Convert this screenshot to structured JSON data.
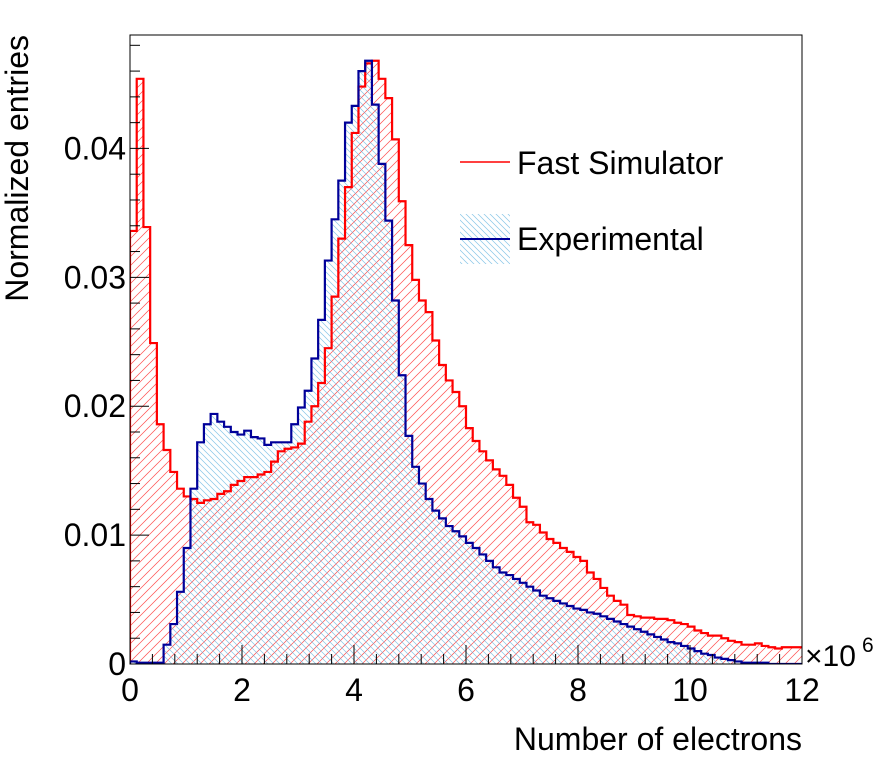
{
  "chart_data": {
    "type": "histogram",
    "xlabel": "Number of electrons",
    "ylabel": "Normalized entries",
    "x_multiplier_label": "×10",
    "x_multiplier_exponent": "6",
    "xlim": [
      0,
      12
    ],
    "ylim": [
      0,
      0.0488
    ],
    "x_ticks": [
      0,
      2,
      4,
      6,
      8,
      10,
      12
    ],
    "x_tick_labels": [
      "0",
      "2",
      "4",
      "6",
      "8",
      "10",
      "12"
    ],
    "y_ticks": [
      0,
      0.01,
      0.02,
      0.03,
      0.04
    ],
    "y_tick_labels": [
      "0",
      "0.01",
      "0.02",
      "0.03",
      "0.04"
    ],
    "bin_edges_start": 0,
    "bin_width": 0.12,
    "legend": [
      {
        "label": "Fast Simulator",
        "color": "#ff0000",
        "style": "line"
      },
      {
        "label": "Experimental",
        "color": "#000099",
        "style": "hatched",
        "fill": "#5fb3df"
      }
    ],
    "series": [
      {
        "name": "Fast Simulator",
        "color": "#ff0000",
        "hatch": "#ff0000",
        "values": [
          0.0336,
          0.0454,
          0.0339,
          0.0249,
          0.0186,
          0.0166,
          0.0149,
          0.0136,
          0.013,
          0.0128,
          0.0125,
          0.0127,
          0.0128,
          0.0132,
          0.0134,
          0.0139,
          0.0142,
          0.0145,
          0.0145,
          0.0147,
          0.0149,
          0.0157,
          0.0165,
          0.0167,
          0.0168,
          0.0171,
          0.0188,
          0.02,
          0.0218,
          0.0245,
          0.0285,
          0.033,
          0.037,
          0.0412,
          0.0448,
          0.0466,
          0.0468,
          0.0454,
          0.0439,
          0.0407,
          0.0359,
          0.0325,
          0.0298,
          0.0282,
          0.0273,
          0.0251,
          0.0232,
          0.022,
          0.0211,
          0.02,
          0.0183,
          0.0173,
          0.0165,
          0.0158,
          0.0151,
          0.0146,
          0.0139,
          0.0129,
          0.0122,
          0.011,
          0.0108,
          0.0102,
          0.0097,
          0.0094,
          0.009,
          0.0087,
          0.0083,
          0.008,
          0.0071,
          0.0066,
          0.0059,
          0.0053,
          0.0049,
          0.0046,
          0.0038,
          0.0037,
          0.0036,
          0.0036,
          0.0035,
          0.0035,
          0.0034,
          0.0032,
          0.0031,
          0.0029,
          0.0026,
          0.0024,
          0.0022,
          0.0022,
          0.002,
          0.0018,
          0.0017,
          0.0015,
          0.0015,
          0.0016,
          0.0014,
          0.0013,
          0.0012,
          0.0013,
          0.0013,
          0.0013
        ]
      },
      {
        "name": "Experimental",
        "color": "#000099",
        "hatch": "#5fb3df",
        "values": [
          0.0002,
          0.0001,
          0.0001,
          0.0001,
          0.0001,
          0.0015,
          0.0031,
          0.0056,
          0.009,
          0.0136,
          0.0172,
          0.0186,
          0.0194,
          0.0188,
          0.0184,
          0.018,
          0.0178,
          0.0181,
          0.0176,
          0.0175,
          0.017,
          0.0172,
          0.0172,
          0.0172,
          0.0186,
          0.0199,
          0.0212,
          0.0237,
          0.0267,
          0.0313,
          0.0345,
          0.0375,
          0.042,
          0.0433,
          0.046,
          0.0468,
          0.0434,
          0.0388,
          0.0344,
          0.0282,
          0.0224,
          0.0177,
          0.0153,
          0.014,
          0.0128,
          0.0119,
          0.0113,
          0.0107,
          0.0103,
          0.0099,
          0.0094,
          0.009,
          0.0085,
          0.008,
          0.0075,
          0.0071,
          0.0069,
          0.0066,
          0.0063,
          0.006,
          0.0057,
          0.0053,
          0.0051,
          0.0049,
          0.0047,
          0.0045,
          0.0043,
          0.0042,
          0.004,
          0.0039,
          0.0037,
          0.0035,
          0.0033,
          0.0031,
          0.0029,
          0.0027,
          0.0025,
          0.0023,
          0.0021,
          0.0019,
          0.0017,
          0.0016,
          0.0014,
          0.0012,
          0.001,
          0.0008,
          0.0007,
          0.0005,
          0.0004,
          0.0003,
          0.0002,
          0.0001,
          0.0001,
          0.0001,
          0.0001,
          0.0,
          0.0,
          0.0,
          0.0,
          0.0
        ]
      }
    ]
  }
}
